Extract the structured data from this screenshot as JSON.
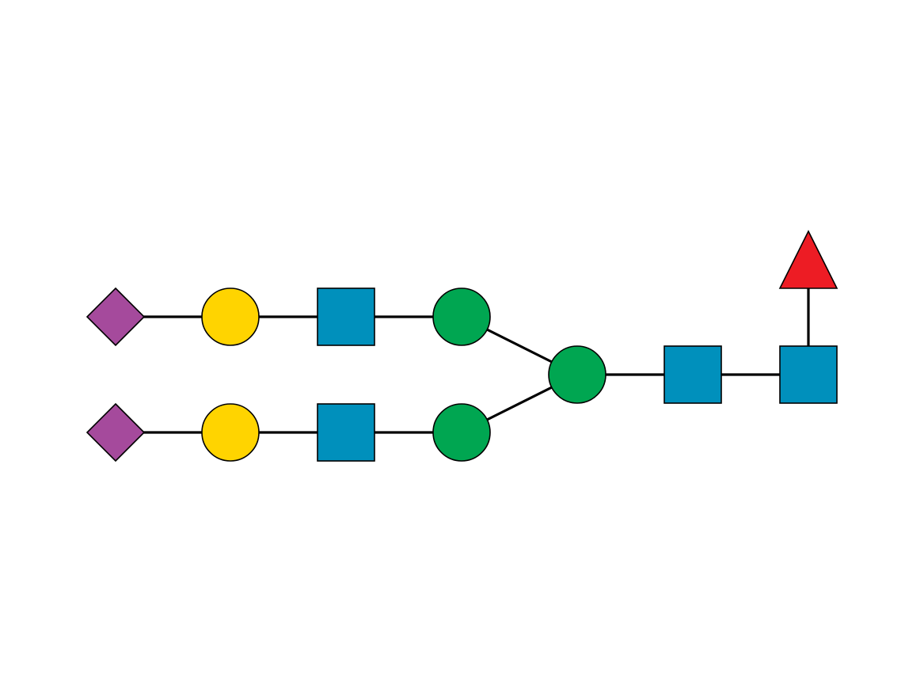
{
  "diagram": {
    "kind": "glycan-structure",
    "symbol_colors": {
      "sialic-acid": "#A54A9C",
      "galactose": "#FFD400",
      "n-acetylglucosamine": "#0090BC",
      "mannose": "#00A651",
      "fucose": "#ED1C24",
      "edge": "#000000"
    },
    "nodes": [
      {
        "id": "neu5ac-upper",
        "residue": "sialic-acid",
        "shape": "diamond"
      },
      {
        "id": "gal-upper",
        "residue": "galactose",
        "shape": "circle"
      },
      {
        "id": "glcnac-upper",
        "residue": "n-acetylglucosamine",
        "shape": "square"
      },
      {
        "id": "man-upper",
        "residue": "mannose",
        "shape": "circle"
      },
      {
        "id": "neu5ac-lower",
        "residue": "sialic-acid",
        "shape": "diamond"
      },
      {
        "id": "gal-lower",
        "residue": "galactose",
        "shape": "circle"
      },
      {
        "id": "glcnac-lower",
        "residue": "n-acetylglucosamine",
        "shape": "square"
      },
      {
        "id": "man-lower",
        "residue": "mannose",
        "shape": "circle"
      },
      {
        "id": "man-core",
        "residue": "mannose",
        "shape": "circle"
      },
      {
        "id": "glcnac-core-2",
        "residue": "n-acetylglucosamine",
        "shape": "square"
      },
      {
        "id": "glcnac-reducing",
        "residue": "n-acetylglucosamine",
        "shape": "square"
      },
      {
        "id": "fuc-core",
        "residue": "fucose",
        "shape": "triangle"
      }
    ],
    "edges": [
      [
        "neu5ac-upper",
        "gal-upper"
      ],
      [
        "gal-upper",
        "glcnac-upper"
      ],
      [
        "glcnac-upper",
        "man-upper"
      ],
      [
        "man-upper",
        "man-core"
      ],
      [
        "neu5ac-lower",
        "gal-lower"
      ],
      [
        "gal-lower",
        "glcnac-lower"
      ],
      [
        "glcnac-lower",
        "man-lower"
      ],
      [
        "man-lower",
        "man-core"
      ],
      [
        "man-core",
        "glcnac-core-2"
      ],
      [
        "glcnac-core-2",
        "glcnac-reducing"
      ],
      [
        "glcnac-reducing",
        "fuc-core"
      ]
    ]
  }
}
